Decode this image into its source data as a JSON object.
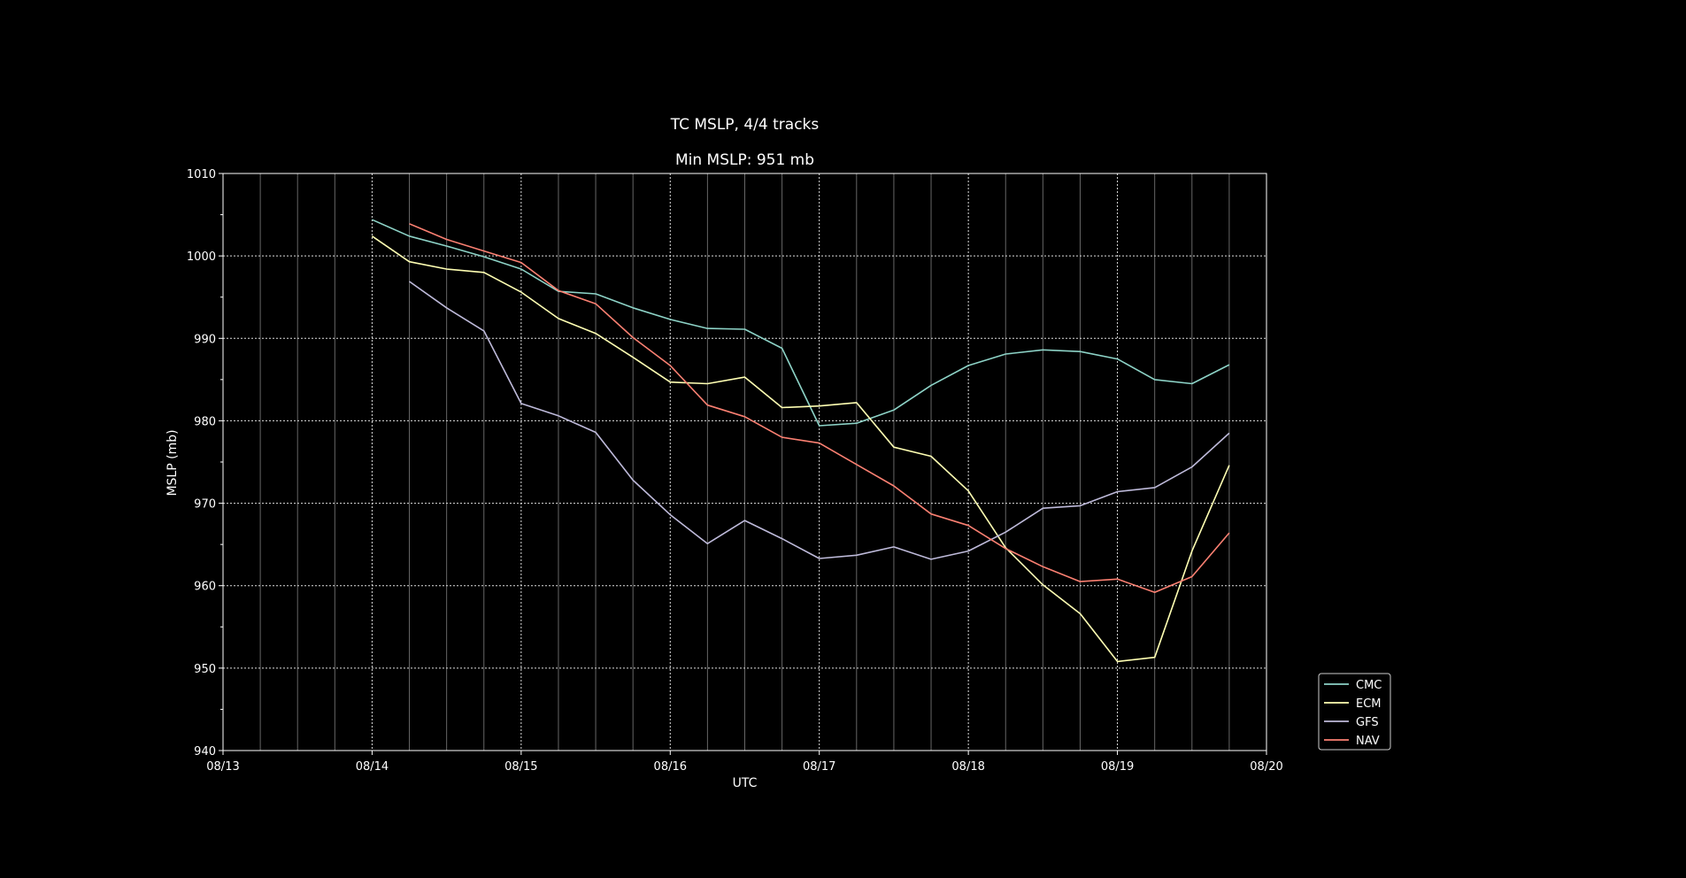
{
  "chart_data": {
    "type": "line",
    "title": "TC MSLP, 4/4 tracks",
    "subtitle": "Min MSLP: 951 mb",
    "xlabel": "UTC",
    "ylabel": "MSLP (mb)",
    "x_ticks": [
      "08/13",
      "08/14",
      "08/15",
      "08/16",
      "08/17",
      "08/18",
      "08/19",
      "08/20"
    ],
    "y_ticks": [
      "940",
      "950",
      "960",
      "970",
      "980",
      "990",
      "1000",
      "1010"
    ],
    "xlim": [
      "2023-08-13T00:00",
      "2023-08-20T00:00"
    ],
    "ylim": [
      940,
      1010
    ],
    "grid": true,
    "legend_position": "outside-lower-right",
    "series": [
      {
        "name": "CMC",
        "color": "#8dd3c7",
        "x": [
          "2023-08-14T00:00",
          "2023-08-14T06:00",
          "2023-08-14T12:00",
          "2023-08-14T18:00",
          "2023-08-15T00:00",
          "2023-08-15T06:00",
          "2023-08-15T12:00",
          "2023-08-15T18:00",
          "2023-08-16T00:00",
          "2023-08-16T06:00",
          "2023-08-16T12:00",
          "2023-08-16T18:00",
          "2023-08-17T00:00",
          "2023-08-17T06:00",
          "2023-08-17T12:00",
          "2023-08-17T18:00",
          "2023-08-18T00:00",
          "2023-08-18T06:00",
          "2023-08-18T12:00",
          "2023-08-18T18:00",
          "2023-08-19T00:00",
          "2023-08-19T06:00",
          "2023-08-19T12:00",
          "2023-08-19T18:00"
        ],
        "values": [
          1004.4,
          1002.4,
          1001.2,
          999.9,
          998.4,
          995.7,
          995.4,
          993.7,
          992.3,
          991.2,
          991.1,
          988.8,
          979.4,
          979.7,
          981.3,
          984.3,
          986.7,
          988.1,
          988.6,
          988.4,
          987.5,
          985.0,
          984.5,
          986.8
        ]
      },
      {
        "name": "ECM",
        "color": "#ffffb3",
        "x": [
          "2023-08-14T00:00",
          "2023-08-14T06:00",
          "2023-08-14T12:00",
          "2023-08-14T18:00",
          "2023-08-15T00:00",
          "2023-08-15T06:00",
          "2023-08-15T12:00",
          "2023-08-15T18:00",
          "2023-08-16T00:00",
          "2023-08-16T06:00",
          "2023-08-16T12:00",
          "2023-08-16T18:00",
          "2023-08-17T00:00",
          "2023-08-17T06:00",
          "2023-08-17T12:00",
          "2023-08-17T18:00",
          "2023-08-18T00:00",
          "2023-08-18T06:00",
          "2023-08-18T12:00",
          "2023-08-18T18:00",
          "2023-08-19T00:00",
          "2023-08-19T06:00",
          "2023-08-19T12:00",
          "2023-08-19T18:00"
        ],
        "values": [
          1002.4,
          999.3,
          998.4,
          998.0,
          995.6,
          992.4,
          990.6,
          987.7,
          984.7,
          984.5,
          985.3,
          981.6,
          981.8,
          982.2,
          976.8,
          975.7,
          971.5,
          964.6,
          960.1,
          956.6,
          950.8,
          951.3,
          964.2,
          974.6
        ]
      },
      {
        "name": "GFS",
        "color": "#bebada",
        "x": [
          "2023-08-14T06:00",
          "2023-08-14T12:00",
          "2023-08-14T18:00",
          "2023-08-15T00:00",
          "2023-08-15T06:00",
          "2023-08-15T12:00",
          "2023-08-15T18:00",
          "2023-08-16T00:00",
          "2023-08-16T06:00",
          "2023-08-16T12:00",
          "2023-08-16T18:00",
          "2023-08-17T00:00",
          "2023-08-17T06:00",
          "2023-08-17T12:00",
          "2023-08-17T18:00",
          "2023-08-18T00:00",
          "2023-08-18T06:00",
          "2023-08-18T12:00",
          "2023-08-18T18:00",
          "2023-08-19T00:00",
          "2023-08-19T06:00",
          "2023-08-19T12:00",
          "2023-08-19T18:00"
        ],
        "values": [
          996.9,
          993.7,
          990.9,
          982.1,
          980.6,
          978.6,
          972.8,
          968.6,
          965.1,
          967.9,
          965.7,
          963.3,
          963.7,
          964.7,
          963.2,
          964.2,
          966.5,
          969.4,
          969.7,
          971.4,
          971.9,
          974.4,
          978.5
        ]
      },
      {
        "name": "NAV",
        "color": "#fb8072",
        "x": [
          "2023-08-14T06:00",
          "2023-08-14T12:00",
          "2023-08-14T18:00",
          "2023-08-15T00:00",
          "2023-08-15T06:00",
          "2023-08-15T12:00",
          "2023-08-15T18:00",
          "2023-08-16T00:00",
          "2023-08-16T06:00",
          "2023-08-16T12:00",
          "2023-08-16T18:00",
          "2023-08-17T00:00",
          "2023-08-17T06:00",
          "2023-08-17T12:00",
          "2023-08-17T18:00",
          "2023-08-18T00:00",
          "2023-08-18T06:00",
          "2023-08-18T12:00",
          "2023-08-18T18:00",
          "2023-08-19T00:00",
          "2023-08-19T06:00",
          "2023-08-19T12:00",
          "2023-08-19T18:00"
        ],
        "values": [
          1003.9,
          1002.0,
          1000.6,
          999.2,
          995.8,
          994.2,
          990.1,
          986.7,
          981.9,
          980.5,
          978.0,
          977.3,
          974.7,
          972.1,
          968.7,
          967.3,
          964.5,
          962.3,
          960.5,
          960.8,
          959.2,
          961.1,
          966.4
        ]
      }
    ]
  }
}
